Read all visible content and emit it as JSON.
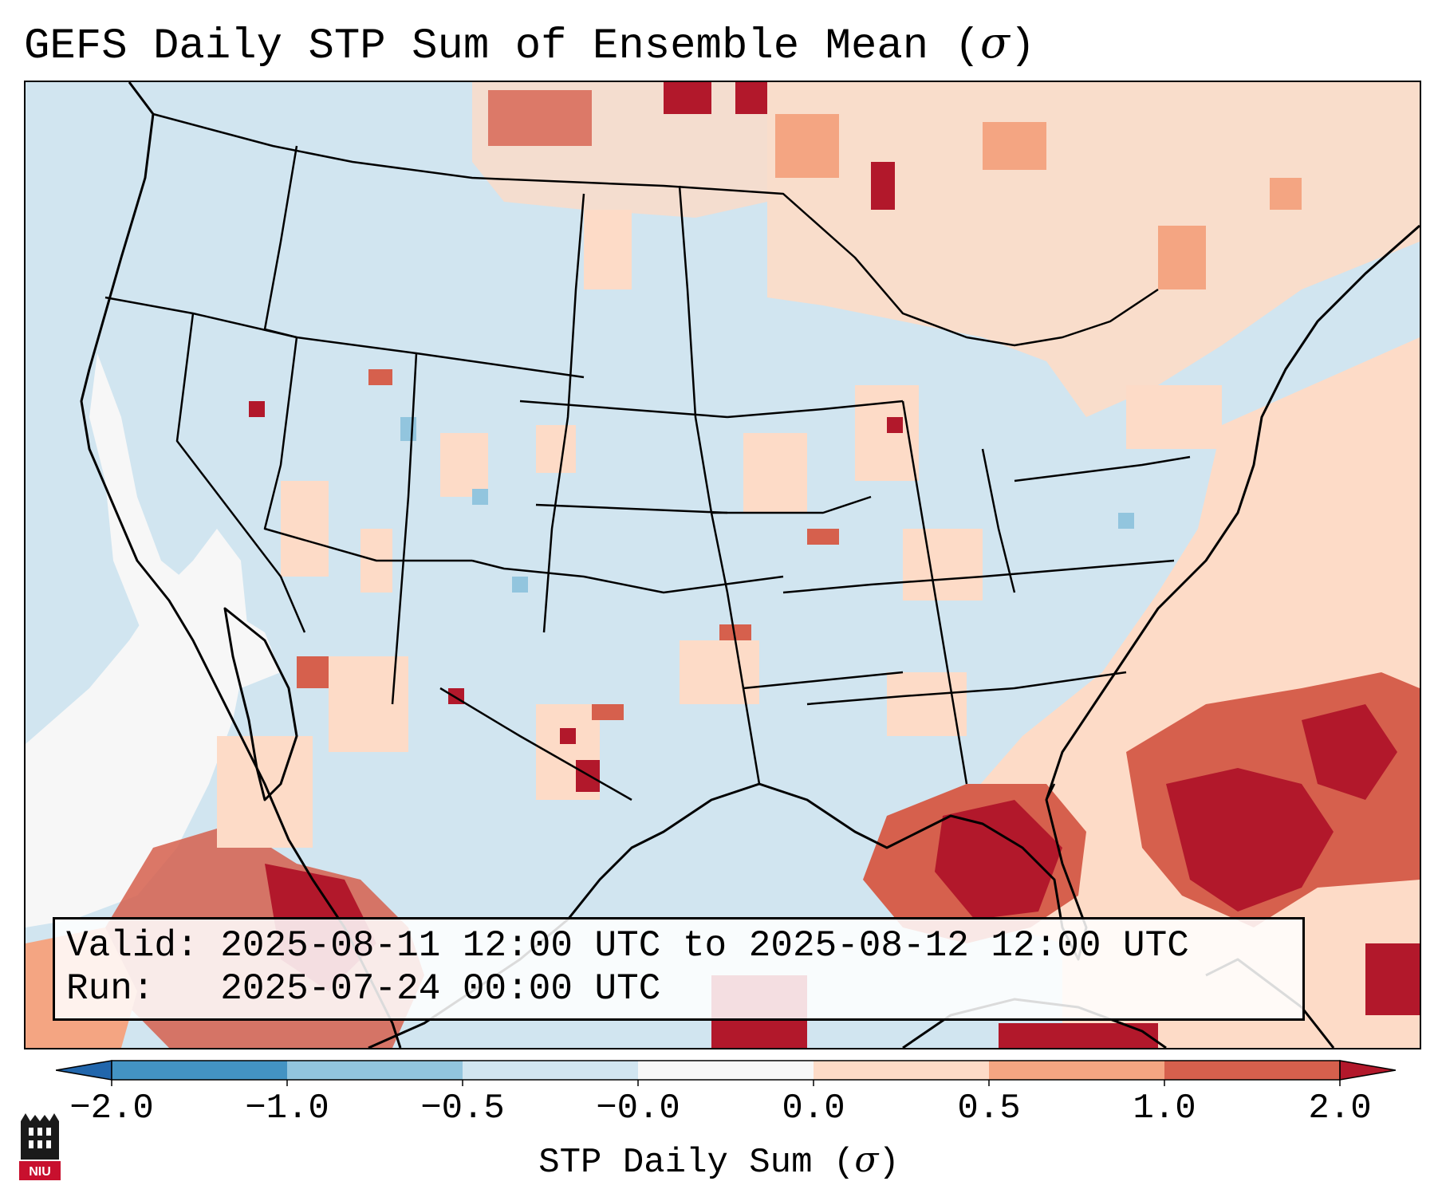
{
  "title": {
    "text": "GEFS Daily STP Sum of Ensemble Mean (",
    "symbol": "σ",
    "close": ")"
  },
  "info": {
    "valid_label": "Valid:",
    "valid_value": "2025-08-11 12:00 UTC to 2025-08-12 12:00 UTC",
    "run_label": "Run:",
    "run_value": "2025-07-24 00:00 UTC"
  },
  "colorbar": {
    "ticks": [
      "−2.0",
      "−1.0",
      "−0.5",
      "−0.0",
      "0.0",
      "0.5",
      "1.0",
      "2.0"
    ],
    "label_text": "STP Daily Sum (",
    "label_symbol": "σ",
    "label_close": ")",
    "bins": [
      {
        "range": "below -2.0",
        "color": "#2166ac"
      },
      {
        "range": "-2.0 to -1.0",
        "color": "#4393c3"
      },
      {
        "range": "-1.0 to -0.5",
        "color": "#92c5de"
      },
      {
        "range": "-0.5 to -0.0",
        "color": "#d1e5f0"
      },
      {
        "range": "-0.0 to 0.0",
        "color": "#f7f7f7"
      },
      {
        "range": "0.0 to 0.5",
        "color": "#fddbc7"
      },
      {
        "range": "0.5 to 1.0",
        "color": "#f4a582"
      },
      {
        "range": "1.0 to 2.0",
        "color": "#d6604d"
      },
      {
        "range": "above 2.0",
        "color": "#b2182b"
      }
    ]
  },
  "logo": {
    "text": "NIU"
  }
}
